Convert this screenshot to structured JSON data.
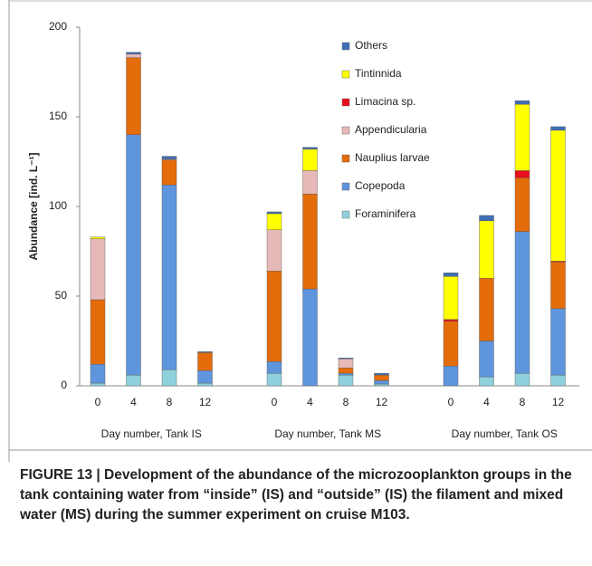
{
  "chart_data": {
    "type": "stacked_bar",
    "y_label": "Abundance [ind. L⁻¹]",
    "categories": [
      "0",
      "4",
      "8",
      "12",
      "0",
      "4",
      "8",
      "12",
      "0",
      "4",
      "8",
      "12"
    ],
    "group_labels": [
      "Day number, Tank IS",
      "Day number, Tank MS",
      "Day number, Tank OS"
    ],
    "ylim": [
      0,
      200
    ],
    "yticks": [
      0,
      50,
      100,
      150,
      200
    ],
    "series": [
      {
        "name": "Foraminifera",
        "color": "#8fd0dc",
        "values": [
          1.5,
          6,
          9,
          1.5,
          7,
          0,
          6,
          1,
          0,
          5,
          7,
          6
        ]
      },
      {
        "name": "Copepoda",
        "color": "#5f95dc",
        "values": [
          10.5,
          134,
          103,
          7,
          6.5,
          54,
          1,
          2,
          11,
          20,
          79,
          37
        ]
      },
      {
        "name": "Nauplius larvae",
        "color": "#e46c0a",
        "values": [
          36,
          43,
          14,
          10,
          50.5,
          53,
          3,
          3,
          25,
          35,
          30,
          26
        ]
      },
      {
        "name": "Appendicularia",
        "color": "#e6b9b8",
        "values": [
          34,
          2,
          0.5,
          0,
          23,
          13,
          5,
          0,
          0,
          0,
          0,
          0
        ]
      },
      {
        "name": "Limacina sp.",
        "color": "#e8101c",
        "values": [
          0,
          0,
          0,
          0,
          0,
          0,
          0,
          0,
          1,
          0,
          4,
          0.5
        ]
      },
      {
        "name": "Tintinnida",
        "color": "#ffff00",
        "values": [
          1,
          0,
          0,
          0,
          9,
          12,
          0,
          0,
          24,
          32,
          37,
          73
        ]
      },
      {
        "name": "Others",
        "color": "#3f6fb5",
        "values": [
          0,
          1,
          1.5,
          0.5,
          1,
          1,
          0.5,
          1,
          2,
          3,
          2,
          2
        ]
      }
    ]
  },
  "caption": "FIGURE 13 | Development of the abundance of the microzooplankton groups in the tank containing water from “inside” (IS) and “outside” (IS) the filament and mixed water (MS) during the summer experiment on cruise M103."
}
